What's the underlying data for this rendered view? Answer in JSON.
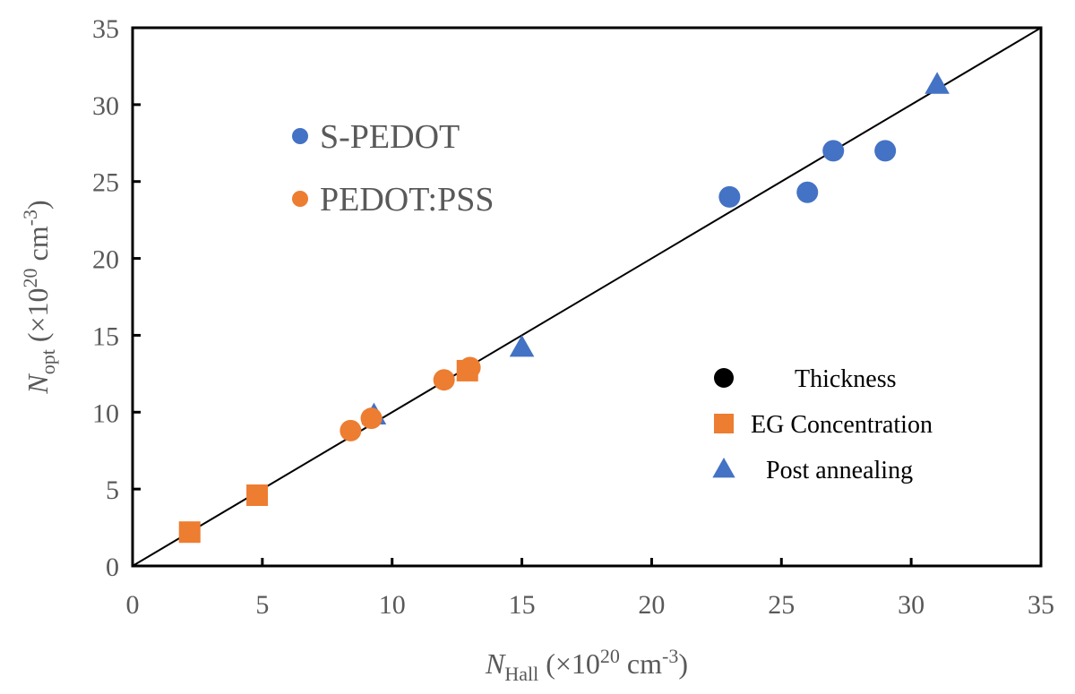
{
  "chart_data": {
    "type": "scatter",
    "xlabel": {
      "main": "N",
      "sub": "Hall",
      "unit_pre": " (×10",
      "sup1": "20",
      "unit_mid": " cm",
      "sup2": "-3",
      "unit_post": ")"
    },
    "ylabel": {
      "main": "N",
      "sub": "opt",
      "unit_pre": " (×10",
      "sup1": "20",
      "unit_mid": " cm",
      "sup2": "-3",
      "unit_post": ")"
    },
    "xlim": [
      0,
      35
    ],
    "ylim": [
      0,
      35
    ],
    "xticks": [
      "0",
      "5",
      "10",
      "15",
      "20",
      "25",
      "30",
      "35"
    ],
    "yticks": [
      "0",
      "5",
      "10",
      "15",
      "20",
      "25",
      "30",
      "35"
    ],
    "grid": false,
    "material_legend": {
      "placement": "top-left",
      "items": [
        {
          "label": "S-PEDOT",
          "color": "#4472C4"
        },
        {
          "label": "PEDOT:PSS",
          "color": "#ED7D31"
        }
      ]
    },
    "method_legend": {
      "placement": "bottom-right",
      "items": [
        {
          "label": "Thickness",
          "marker": "circle",
          "color": "#000000"
        },
        {
          "label": "EG Concentration",
          "marker": "square",
          "color": "#ED7D31"
        },
        {
          "label": "Post annealing",
          "marker": "triangle",
          "color": "#4472C4"
        }
      ]
    },
    "reference_line": {
      "x": [
        0,
        35
      ],
      "y": [
        0,
        35
      ],
      "color": "#000000"
    },
    "series": [
      {
        "material": "S-PEDOT",
        "method": "Thickness",
        "marker": "circle",
        "color": "#4472C4",
        "points": [
          {
            "x": 23.0,
            "y": 24.0
          },
          {
            "x": 26.0,
            "y": 24.3
          },
          {
            "x": 27.0,
            "y": 27.0
          },
          {
            "x": 29.0,
            "y": 27.0
          }
        ]
      },
      {
        "material": "S-PEDOT",
        "method": "Post annealing",
        "marker": "triangle",
        "color": "#4472C4",
        "points": [
          {
            "x": 9.3,
            "y": 9.8
          },
          {
            "x": 15.0,
            "y": 14.2
          },
          {
            "x": 31.0,
            "y": 31.3
          }
        ]
      },
      {
        "material": "PEDOT:PSS",
        "method": "Thickness",
        "marker": "circle",
        "color": "#ED7D31",
        "points": [
          {
            "x": 8.4,
            "y": 8.8
          },
          {
            "x": 9.2,
            "y": 9.6
          },
          {
            "x": 12.0,
            "y": 12.1
          },
          {
            "x": 13.0,
            "y": 12.9
          }
        ]
      },
      {
        "material": "PEDOT:PSS",
        "method": "EG Concentration",
        "marker": "square",
        "color": "#ED7D31",
        "points": [
          {
            "x": 2.2,
            "y": 2.2
          },
          {
            "x": 4.8,
            "y": 4.6
          },
          {
            "x": 12.9,
            "y": 12.7
          }
        ]
      }
    ]
  }
}
